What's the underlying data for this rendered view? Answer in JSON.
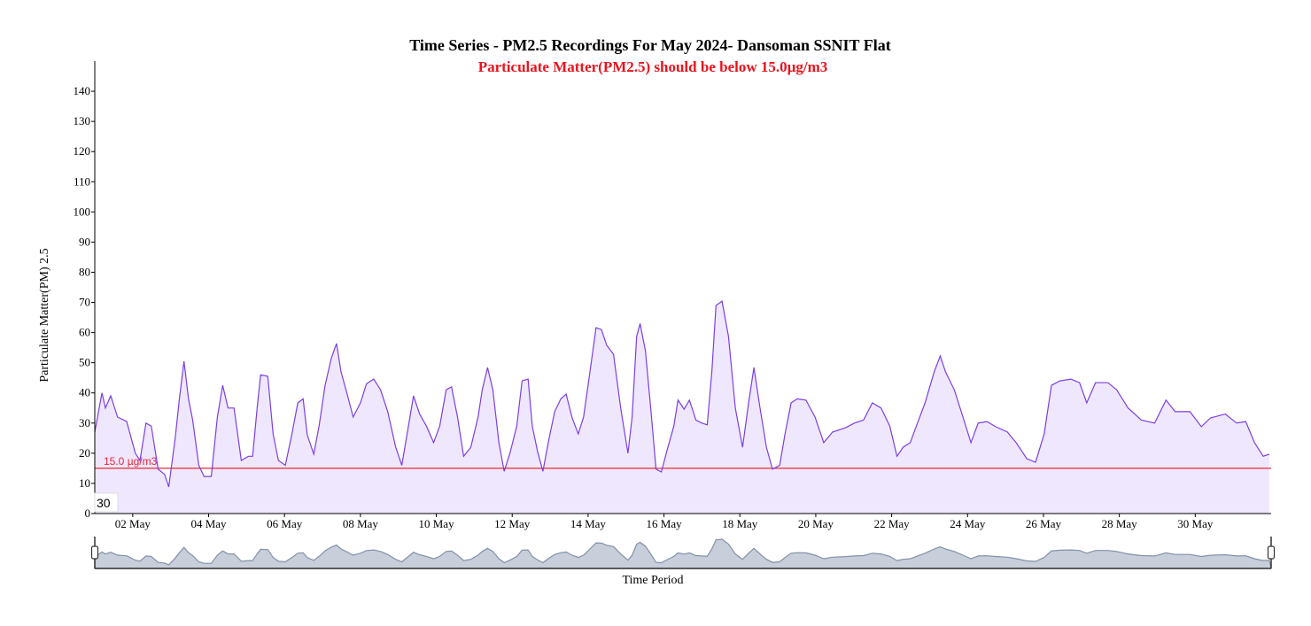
{
  "chart_data": {
    "type": "area",
    "title": "Time Series - PM2.5 Recordings For May 2024- Dansoman SSNIT Flat",
    "subtitle": "Particulate Matter(PM2.5) should be below 15.0µg/m3",
    "x_label": "Time Period",
    "y_label": "Particulate Matter(PM) 2.5",
    "period_box": "30",
    "color": "#7b3fe4",
    "fill": "#efe7fd",
    "navigator_color": "#8391a8",
    "navigator_fill": "#c8ceda",
    "threshold": {
      "value": 15,
      "label": "15.0 µg/m3",
      "color": "#e8283a"
    },
    "xlim": [
      1,
      32
    ],
    "xticks": [
      {
        "value": 2,
        "label": "02 May"
      },
      {
        "value": 4,
        "label": "04 May"
      },
      {
        "value": 6,
        "label": "06 May"
      },
      {
        "value": 8,
        "label": "08 May"
      },
      {
        "value": 10,
        "label": "10 May"
      },
      {
        "value": 12,
        "label": "12 May"
      },
      {
        "value": 14,
        "label": "14 May"
      },
      {
        "value": 16,
        "label": "16 May"
      },
      {
        "value": 18,
        "label": "18 May"
      },
      {
        "value": 20,
        "label": "20 May"
      },
      {
        "value": 22,
        "label": "22 May"
      },
      {
        "value": 24,
        "label": "24 May"
      },
      {
        "value": 26,
        "label": "26 May"
      },
      {
        "value": 28,
        "label": "28 May"
      },
      {
        "value": 30,
        "label": "30 May"
      }
    ],
    "ylim": [
      0,
      150
    ],
    "yticks": [
      0,
      10,
      20,
      30,
      40,
      50,
      60,
      70,
      80,
      90,
      100,
      110,
      120,
      130,
      140
    ],
    "x": [
      1.0,
      1.19,
      1.28,
      1.42,
      1.6,
      1.84,
      2.07,
      2.19,
      2.35,
      2.49,
      2.67,
      2.84,
      2.95,
      3.12,
      3.23,
      3.35,
      3.47,
      3.58,
      3.74,
      3.88,
      4.07,
      4.23,
      4.37,
      4.51,
      4.67,
      4.86,
      5.05,
      5.16,
      5.28,
      5.37,
      5.56,
      5.7,
      5.84,
      6.02,
      6.19,
      6.35,
      6.49,
      6.6,
      6.77,
      6.91,
      7.07,
      7.23,
      7.37,
      7.49,
      7.65,
      7.81,
      8.0,
      8.16,
      8.35,
      8.53,
      8.72,
      8.93,
      9.09,
      9.23,
      9.4,
      9.56,
      9.74,
      9.93,
      10.09,
      10.26,
      10.4,
      10.56,
      10.72,
      10.91,
      11.1,
      11.21,
      11.35,
      11.49,
      11.65,
      11.79,
      11.95,
      12.12,
      12.26,
      12.42,
      12.53,
      12.67,
      12.81,
      12.95,
      13.12,
      13.28,
      13.42,
      13.58,
      13.74,
      13.88,
      14.05,
      14.21,
      14.35,
      14.49,
      14.67,
      14.86,
      15.05,
      15.16,
      15.28,
      15.37,
      15.51,
      15.65,
      15.79,
      15.93,
      16.07,
      16.26,
      16.37,
      16.53,
      16.67,
      16.84,
      17.0,
      17.14,
      17.26,
      17.37,
      17.53,
      17.7,
      17.88,
      18.07,
      18.23,
      18.37,
      18.53,
      18.7,
      18.86,
      19.05,
      19.19,
      19.35,
      19.51,
      19.74,
      19.98,
      20.21,
      20.44,
      20.79,
      21.02,
      21.26,
      21.49,
      21.72,
      21.95,
      22.14,
      22.3,
      22.49,
      22.65,
      22.88,
      23.12,
      23.28,
      23.42,
      23.65,
      23.88,
      24.09,
      24.28,
      24.51,
      24.74,
      25.05,
      25.28,
      25.56,
      25.79,
      26.02,
      26.21,
      26.44,
      26.72,
      26.95,
      27.14,
      27.37,
      27.7,
      27.93,
      28.23,
      28.58,
      28.93,
      29.23,
      29.47,
      29.86,
      30.16,
      30.4,
      30.79,
      31.09,
      31.33,
      31.56,
      31.79,
      31.95
    ],
    "values": [
      27,
      40,
      35,
      39,
      32,
      30.5,
      20,
      17.6,
      30,
      29,
      14.7,
      13,
      8.8,
      25,
      38,
      50.5,
      38,
      31,
      16,
      12.3,
      12.3,
      32,
      42.5,
      35,
      35,
      17.6,
      19,
      19,
      35,
      46,
      45.5,
      26.4,
      17.6,
      16,
      26,
      36.7,
      38,
      26,
      19.7,
      29,
      42.5,
      51.4,
      56.4,
      47,
      39.6,
      32,
      36.7,
      43,
      44.6,
      41,
      33.8,
      22,
      16,
      26.4,
      39,
      33,
      29,
      23.5,
      29,
      41,
      42,
      32,
      19,
      22,
      32,
      41,
      48.4,
      41,
      23.5,
      14,
      20.5,
      29,
      44,
      44.6,
      29,
      20.5,
      14,
      23.5,
      33.8,
      38,
      39.6,
      31.7,
      26.4,
      32,
      47,
      61.6,
      61,
      55.8,
      52.8,
      35,
      20,
      32,
      58.7,
      63,
      54,
      35,
      14.7,
      13.8,
      20.5,
      29,
      37.6,
      34.6,
      37.6,
      31,
      30,
      29.4,
      47,
      69,
      70.4,
      58.7,
      35,
      22,
      36.7,
      48.4,
      35,
      22,
      14.7,
      16,
      26.4,
      36.7,
      38,
      37.6,
      32,
      23.5,
      27,
      28.5,
      30,
      31,
      36.7,
      35,
      29,
      19,
      22,
      23.5,
      29,
      36.7,
      47,
      52.2,
      47,
      41,
      32,
      23.5,
      30,
      30.5,
      28.8,
      27,
      23.5,
      18.2,
      17,
      26.4,
      42.5,
      44,
      44.6,
      43.4,
      36.7,
      43.4,
      43.4,
      41,
      35,
      31,
      30,
      37.6,
      33.8,
      33.8,
      28.8,
      31.7,
      33,
      30,
      30.5,
      23.5,
      19,
      19.7
    ]
  }
}
